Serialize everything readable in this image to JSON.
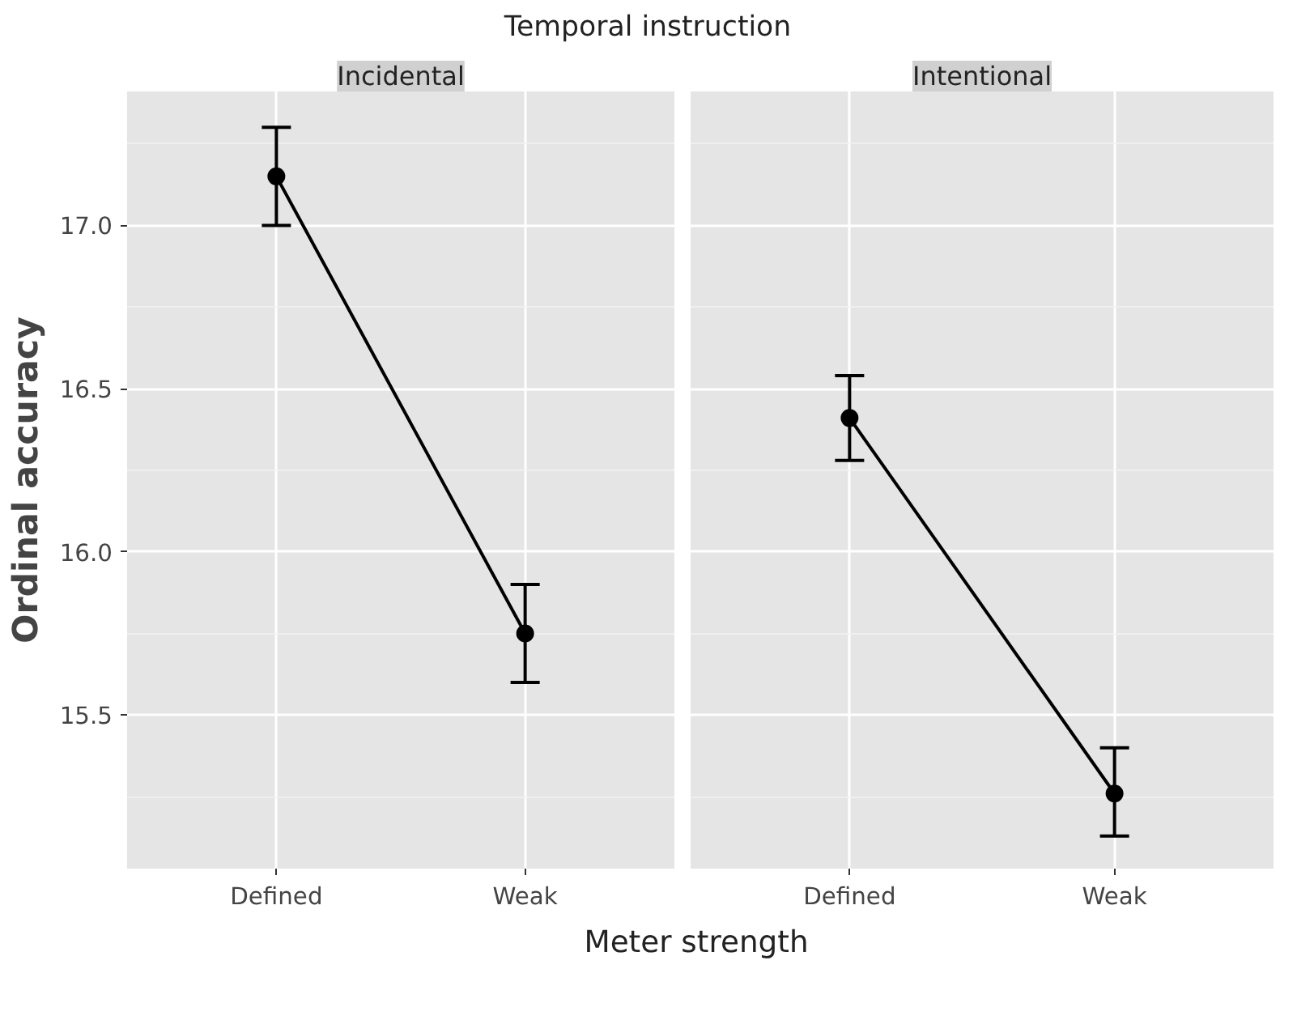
{
  "chart_data": [
    {
      "type": "line",
      "title": "Temporal instruction",
      "subtitle": "Incidental",
      "xlabel": "Meter strength",
      "ylabel": "Ordinal accuracy",
      "categories": [
        "Defined",
        "Weak"
      ],
      "series": [
        {
          "color": "#000000",
          "values": [
            17.15,
            15.75
          ],
          "errors": [
            [
              17.0,
              17.3
            ],
            [
              15.6,
              15.9
            ]
          ]
        }
      ],
      "ylim": [
        15.03,
        17.41
      ],
      "yticks": [
        {
          "value": 15.25,
          "label": null
        },
        {
          "value": 15.5,
          "label": "15.5"
        },
        {
          "value": 15.75,
          "label": null
        },
        {
          "value": 16,
          "label": "16.0"
        },
        {
          "value": 16.25,
          "label": null
        },
        {
          "value": 16.5,
          "label": "16.5"
        },
        {
          "value": 16.75,
          "label": null
        },
        {
          "value": 17,
          "label": "17.0"
        },
        {
          "value": 17.25,
          "label": null
        }
      ],
      "grid": true,
      "marker": "circle",
      "line_style": "solid",
      "legend": false
    },
    {
      "type": "line",
      "subtitle": "Intentional",
      "categories": [
        "Defined",
        "Weak"
      ],
      "series": [
        {
          "color": "#000000",
          "values": [
            16.41,
            15.26
          ],
          "errors": [
            [
              16.28,
              16.54
            ],
            [
              15.13,
              15.4
            ]
          ]
        }
      ],
      "ylim": [
        15.03,
        17.41
      ],
      "tick_labels": "x",
      "grid": true,
      "marker": "circle",
      "line_style": "solid",
      "legend": false
    }
  ]
}
